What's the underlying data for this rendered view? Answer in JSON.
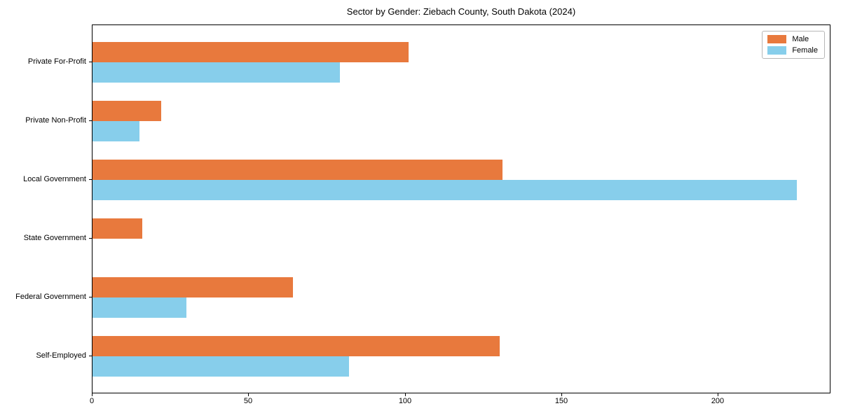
{
  "chart_data": {
    "type": "bar",
    "orientation": "horizontal",
    "title": "Sector by Gender: Ziebach County, South Dakota (2024)",
    "categories": [
      "Private For-Profit",
      "Private Non-Profit",
      "Local Government",
      "State Government",
      "Federal Government",
      "Self-Employed"
    ],
    "series": [
      {
        "name": "Male",
        "color": "#e8793d",
        "values": [
          101,
          22,
          131,
          16,
          64,
          130
        ]
      },
      {
        "name": "Female",
        "color": "#87ceeb",
        "values": [
          79,
          15,
          225,
          0,
          30,
          82
        ]
      }
    ],
    "xlabel": "",
    "ylabel": "",
    "xticks": [
      0,
      50,
      100,
      150,
      200
    ],
    "xlim": [
      0,
      236
    ],
    "grid": false,
    "legend_position": "upper right"
  }
}
